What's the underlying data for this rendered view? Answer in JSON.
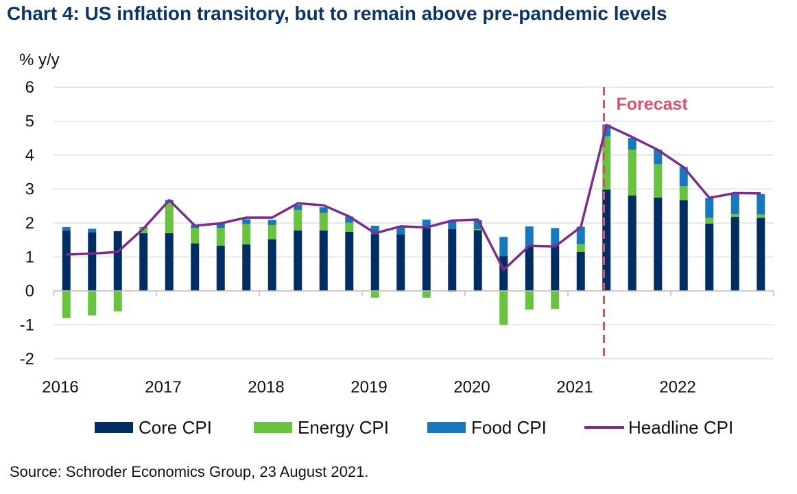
{
  "title": "Chart 4: US inflation transitory, but to remain above pre-pandemic levels",
  "source": "Source: Schroder Economics Group, 23 August 2021.",
  "colors": {
    "core": "#002d62",
    "energy": "#68c43c",
    "food": "#1679c0",
    "headline": "#7b2d8e",
    "forecast": "#dd5069",
    "title": "#0c3668"
  },
  "chart_data": {
    "type": "bar",
    "stacked": true,
    "ylabel": "% y/y",
    "ylim": [
      -2,
      6
    ],
    "yticks": [
      6,
      5,
      4,
      3,
      2,
      1,
      0,
      -1,
      -2
    ],
    "grid": true,
    "legend_position": "bottom",
    "forecast_label": "Forecast",
    "forecast_after_index": 21,
    "x_tick_labels": [
      "2016",
      "2017",
      "2018",
      "2019",
      "2020",
      "2021",
      "2022"
    ],
    "categories": [
      "2016 Q1",
      "2016 Q2",
      "2016 Q3",
      "2016 Q4",
      "2017 Q1",
      "2017 Q2",
      "2017 Q3",
      "2017 Q4",
      "2018 Q1",
      "2018 Q2",
      "2018 Q3",
      "2018 Q4",
      "2019 Q1",
      "2019 Q2",
      "2019 Q3",
      "2019 Q4",
      "2020 Q1",
      "2020 Q2",
      "2020 Q3",
      "2020 Q4",
      "2021 Q1",
      "2021 Q2",
      "2021 Q3",
      "2021 Q4",
      "2022 Q1",
      "2022 Q2",
      "2022 Q3",
      "2022 Q4"
    ],
    "series": [
      {
        "name": "Core CPI",
        "type": "bar",
        "color_key": "core",
        "values": [
          1.78,
          1.73,
          1.76,
          1.7,
          1.7,
          1.4,
          1.33,
          1.37,
          1.52,
          1.78,
          1.78,
          1.74,
          1.67,
          1.67,
          1.84,
          1.82,
          1.79,
          1.03,
          1.3,
          1.33,
          1.15,
          2.98,
          2.81,
          2.75,
          2.67,
          1.98,
          2.18,
          2.15
        ]
      },
      {
        "name": "Energy CPI",
        "type": "bar",
        "color_key": "energy",
        "values": [
          -0.8,
          -0.72,
          -0.6,
          0.16,
          0.9,
          0.45,
          0.52,
          0.6,
          0.42,
          0.6,
          0.52,
          0.27,
          -0.2,
          -0.02,
          -0.2,
          -0.03,
          0.03,
          -1.0,
          -0.55,
          -0.53,
          0.22,
          1.57,
          1.35,
          0.98,
          0.42,
          0.17,
          0.08,
          0.1
        ]
      },
      {
        "name": "Food CPI",
        "type": "bar",
        "color_key": "food",
        "values": [
          0.1,
          0.1,
          0.0,
          0.02,
          0.08,
          0.1,
          0.15,
          0.14,
          0.15,
          0.15,
          0.16,
          0.18,
          0.25,
          0.25,
          0.26,
          0.23,
          0.26,
          0.56,
          0.6,
          0.52,
          0.52,
          0.35,
          0.34,
          0.43,
          0.56,
          0.58,
          0.6,
          0.6
        ]
      },
      {
        "name": "Headline CPI",
        "type": "line",
        "color_key": "headline",
        "values": [
          1.07,
          1.1,
          1.15,
          1.84,
          2.67,
          1.92,
          1.99,
          2.16,
          2.16,
          2.58,
          2.52,
          2.19,
          1.7,
          1.9,
          1.87,
          2.07,
          2.1,
          0.62,
          1.33,
          1.31,
          1.88,
          4.88,
          4.53,
          4.15,
          3.64,
          2.74,
          2.88,
          2.87
        ]
      }
    ]
  }
}
